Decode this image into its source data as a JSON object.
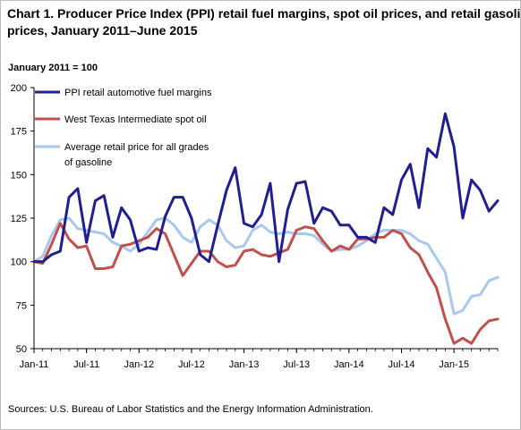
{
  "chart_data": {
    "type": "line",
    "title": "Chart 1. Producer Price Index (PPI) retail fuel margins, spot oil prices, and retail gasoline prices, January 2011–June 2015",
    "title_lines": [
      "Chart 1. Producer Price Index (PPI) retail fuel margins, spot oil prices, and retail gasoline",
      "prices, January 2011–June 2015"
    ],
    "subtitle": "January  2011 = 100",
    "source": "Sources:  U.S. Bureau of Labor Statistics and the Energy Information Administration.",
    "ylim": [
      50,
      200
    ],
    "yticks": [
      50,
      75,
      100,
      125,
      150,
      175,
      200
    ],
    "x_tick_labels": [
      {
        "index": 0,
        "label": "Jan-11"
      },
      {
        "index": 6,
        "label": "Jul-11"
      },
      {
        "index": 12,
        "label": "Jan-12"
      },
      {
        "index": 18,
        "label": "Jul-12"
      },
      {
        "index": 24,
        "label": "Jan-13"
      },
      {
        "index": 30,
        "label": "Jul-13"
      },
      {
        "index": 36,
        "label": "Jan-14"
      },
      {
        "index": 42,
        "label": "Jul-14"
      },
      {
        "index": 48,
        "label": "Jan-15"
      }
    ],
    "x": [
      "2011-01",
      "2011-02",
      "2011-03",
      "2011-04",
      "2011-05",
      "2011-06",
      "2011-07",
      "2011-08",
      "2011-09",
      "2011-10",
      "2011-11",
      "2011-12",
      "2012-01",
      "2012-02",
      "2012-03",
      "2012-04",
      "2012-05",
      "2012-06",
      "2012-07",
      "2012-08",
      "2012-09",
      "2012-10",
      "2012-11",
      "2012-12",
      "2013-01",
      "2013-02",
      "2013-03",
      "2013-04",
      "2013-05",
      "2013-06",
      "2013-07",
      "2013-08",
      "2013-09",
      "2013-10",
      "2013-11",
      "2013-12",
      "2014-01",
      "2014-02",
      "2014-03",
      "2014-04",
      "2014-05",
      "2014-06",
      "2014-07",
      "2014-08",
      "2014-09",
      "2014-10",
      "2014-11",
      "2014-12",
      "2015-01",
      "2015-02",
      "2015-03",
      "2015-04",
      "2015-05",
      "2015-06"
    ],
    "grid": false,
    "legend_placement": "top-left",
    "series": [
      {
        "name": "PPI retail automotive fuel margins",
        "color": "#1f1f8f",
        "values": [
          100,
          100,
          104,
          106,
          137,
          142,
          111,
          135,
          138,
          114,
          131,
          124,
          106,
          108,
          107,
          126,
          137,
          137,
          125,
          104,
          100,
          121,
          141,
          154,
          122,
          120,
          127,
          145,
          100,
          130,
          145,
          146,
          122,
          131,
          129,
          121,
          121,
          114,
          114,
          111,
          131,
          127,
          147,
          156,
          131,
          165,
          160,
          185,
          166,
          125,
          147,
          141,
          129,
          135
        ]
      },
      {
        "name": "West Texas Intermediate spot oil",
        "color": "#c0504d",
        "values": [
          100,
          99,
          110,
          122,
          113,
          108,
          109,
          96,
          96,
          97,
          109,
          110,
          112,
          114,
          119,
          116,
          104,
          92,
          99,
          106,
          106,
          100,
          97,
          98,
          106,
          107,
          104,
          103,
          105,
          107,
          118,
          120,
          119,
          112,
          106,
          109,
          107,
          113,
          113,
          114,
          114,
          118,
          116,
          108,
          104,
          94,
          85,
          67,
          53,
          56,
          53,
          61,
          66,
          67
        ]
      },
      {
        "name": "Average retail price for all grades of gasoline",
        "legend_lines": [
          "Average retail price for all grades",
          "of gasoline"
        ],
        "color": "#a8c8ee",
        "values": [
          100,
          103,
          115,
          124,
          125,
          119,
          118,
          117,
          116,
          111,
          109,
          106,
          110,
          117,
          124,
          125,
          121,
          114,
          111,
          120,
          124,
          121,
          112,
          108,
          109,
          118,
          121,
          117,
          116,
          117,
          116,
          116,
          115,
          110,
          106,
          107,
          107,
          109,
          112,
          116,
          118,
          118,
          118,
          116,
          112,
          110,
          102,
          94,
          70,
          72,
          80,
          81,
          89,
          91
        ]
      }
    ]
  }
}
